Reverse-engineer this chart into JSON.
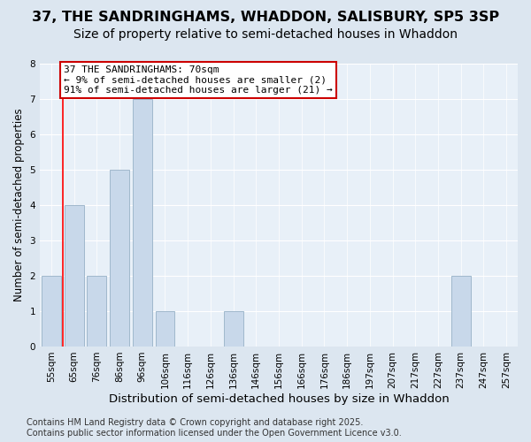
{
  "title": "37, THE SANDRINGHAMS, WHADDON, SALISBURY, SP5 3SP",
  "subtitle": "Size of property relative to semi-detached houses in Whaddon",
  "xlabel": "Distribution of semi-detached houses by size in Whaddon",
  "ylabel": "Number of semi-detached properties",
  "bins": [
    "55sqm",
    "65sqm",
    "76sqm",
    "86sqm",
    "96sqm",
    "106sqm",
    "116sqm",
    "126sqm",
    "136sqm",
    "146sqm",
    "156sqm",
    "166sqm",
    "176sqm",
    "186sqm",
    "197sqm",
    "207sqm",
    "217sqm",
    "227sqm",
    "237sqm",
    "247sqm",
    "257sqm"
  ],
  "bar_heights": [
    2,
    4,
    2,
    5,
    7,
    1,
    0,
    0,
    1,
    0,
    0,
    0,
    0,
    0,
    0,
    0,
    0,
    0,
    2,
    0,
    0
  ],
  "bar_color": "#c8d8ea",
  "bar_edge_color": "#a0b8cc",
  "red_line_x": 0.5,
  "ylim": [
    0,
    8
  ],
  "yticks": [
    0,
    1,
    2,
    3,
    4,
    5,
    6,
    7,
    8
  ],
  "annotation_title": "37 THE SANDRINGHAMS: 70sqm",
  "annotation_line2": "← 9% of semi-detached houses are smaller (2)",
  "annotation_line3": "91% of semi-detached houses are larger (21) →",
  "annotation_box_color": "#ffffff",
  "annotation_box_edge": "#cc0000",
  "footer_line1": "Contains HM Land Registry data © Crown copyright and database right 2025.",
  "footer_line2": "Contains public sector information licensed under the Open Government Licence v3.0.",
  "bg_color": "#dce6f0",
  "plot_bg_color": "#e8f0f8",
  "title_fontsize": 11.5,
  "subtitle_fontsize": 10,
  "xlabel_fontsize": 9.5,
  "ylabel_fontsize": 8.5,
  "tick_fontsize": 7.5,
  "annotation_fontsize": 8,
  "footer_fontsize": 7
}
